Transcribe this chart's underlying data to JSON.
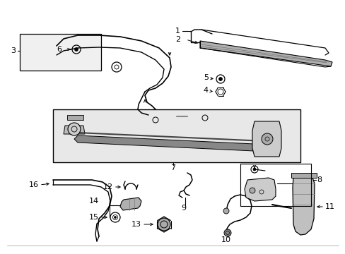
{
  "bg_color": "#ffffff",
  "line_color": "#000000",
  "gray_fill": "#aaaaaa",
  "light_gray": "#d8d8d8",
  "box_fill": "#e4e4e4",
  "label_fs": 8,
  "anno_lw": 0.7
}
